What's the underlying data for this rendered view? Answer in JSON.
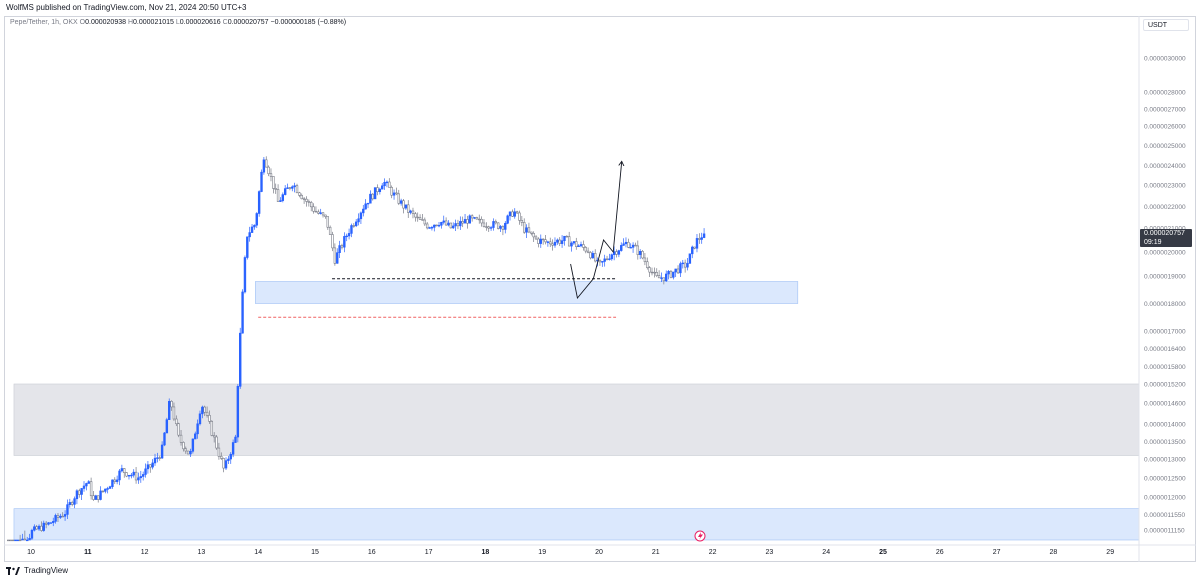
{
  "header": {
    "published_text": "WolfMS published on TradingView.com, Nov 21, 2024 20:50 UTC+3"
  },
  "legend": {
    "symbol": "Pepe/Tether, 1h, OKX",
    "o_label": "O",
    "o_value": "0.000020938",
    "h_label": "H",
    "h_value": "0.000021015",
    "l_label": "L",
    "l_value": "0.000020616",
    "c_label": "C",
    "c_value": "0.000020757",
    "change": "−0.000000185 (−0.88%)"
  },
  "currency_button": {
    "label": "USDT"
  },
  "price_tag": {
    "price": "0.000020757",
    "countdown": "09:19"
  },
  "footer": {
    "brand": "TradingView"
  },
  "icons": {
    "logo": "tradingview-logo-icon",
    "flash": "lightning-event-icon"
  },
  "colors": {
    "candle": "#2962ff",
    "candle_other": "#787b86",
    "demand_zone": "#dbe8fd",
    "gray_zone": "#e4e5ea",
    "red_dash": "#f06262"
  },
  "chart_data": {
    "type": "candlestick",
    "symbol": "Pepe/Tether, 1h, OKX",
    "x_ticks": [
      "10",
      "11",
      "12",
      "13",
      "14",
      "15",
      "16",
      "17",
      "18",
      "19",
      "20",
      "21",
      "22",
      "23",
      "24",
      "25",
      "26",
      "27",
      "28",
      "29"
    ],
    "y_ticks": [
      "0.0000030000",
      "0.0000028000",
      "0.0000027000",
      "0.0000026000",
      "0.0000025000",
      "0.0000024000",
      "0.0000023000",
      "0.0000022000",
      "0.0000021000",
      "0.0000020000",
      "0.0000019000",
      "0.0000018000",
      "0.0000017000",
      "0.0000016400",
      "0.0000015800",
      "0.0000015200",
      "0.0000014600",
      "0.0000014000",
      "0.0000013500",
      "0.0000013000",
      "0.0000012500",
      "0.0000012000",
      "0.0000011550",
      "0.0000011150"
    ],
    "last_close": 2.0757e-05,
    "price_path": [
      [
        10.0,
        1.11e-05
      ],
      [
        10.3,
        1.13e-05
      ],
      [
        10.6,
        1.16e-05
      ],
      [
        10.8,
        1.21e-05
      ],
      [
        11.0,
        1.24e-05
      ],
      [
        11.1,
        1.19e-05
      ],
      [
        11.3,
        1.22e-05
      ],
      [
        11.6,
        1.27e-05
      ],
      [
        11.9,
        1.25e-05
      ],
      [
        12.1,
        1.28e-05
      ],
      [
        12.3,
        1.32e-05
      ],
      [
        12.45,
        1.47e-05
      ],
      [
        12.6,
        1.36e-05
      ],
      [
        12.8,
        1.31e-05
      ],
      [
        13.0,
        1.46e-05
      ],
      [
        13.2,
        1.37e-05
      ],
      [
        13.4,
        1.27e-05
      ],
      [
        13.6,
        1.36e-05
      ],
      [
        13.7,
        1.75e-05
      ],
      [
        13.8,
        2.07e-05
      ],
      [
        13.95,
        2.12e-05
      ],
      [
        14.1,
        2.45e-05
      ],
      [
        14.2,
        2.36e-05
      ],
      [
        14.35,
        2.22e-05
      ],
      [
        14.6,
        2.31e-05
      ],
      [
        14.8,
        2.24e-05
      ],
      [
        15.0,
        2.18e-05
      ],
      [
        15.2,
        2.14e-05
      ],
      [
        15.35,
        1.97e-05
      ],
      [
        15.6,
        2.09e-05
      ],
      [
        15.9,
        2.22e-05
      ],
      [
        16.1,
        2.28e-05
      ],
      [
        16.2,
        2.32e-05
      ],
      [
        16.4,
        2.25e-05
      ],
      [
        16.6,
        2.19e-05
      ],
      [
        16.8,
        2.14e-05
      ],
      [
        17.0,
        2.11e-05
      ],
      [
        17.2,
        2.13e-05
      ],
      [
        17.4,
        2.1e-05
      ],
      [
        17.7,
        2.14e-05
      ],
      [
        18.0,
        2.12e-05
      ],
      [
        18.3,
        2.11e-05
      ],
      [
        18.5,
        2.18e-05
      ],
      [
        18.7,
        2.09e-05
      ],
      [
        18.9,
        2.05e-05
      ],
      [
        19.1,
        2.04e-05
      ],
      [
        19.4,
        2.05e-05
      ],
      [
        19.6,
        2.03e-05
      ],
      [
        19.8,
        2.01e-05
      ],
      [
        20.0,
        1.94e-05
      ],
      [
        20.2,
        1.99e-05
      ],
      [
        20.5,
        2.04e-05
      ],
      [
        20.7,
        2e-05
      ],
      [
        20.9,
        1.93e-05
      ],
      [
        21.0,
        1.89e-05
      ],
      [
        21.2,
        1.9e-05
      ],
      [
        21.4,
        1.93e-05
      ],
      [
        21.55,
        1.95e-05
      ],
      [
        21.7,
        2.04e-05
      ],
      [
        21.85,
        2.08e-05
      ]
    ],
    "zones": [
      {
        "name": "demand-zone-upper",
        "from_x": 13.95,
        "to_x": 23.5,
        "y_low": 1.8e-05,
        "y_high": 1.88e-05,
        "color": "#dbe8fd"
      },
      {
        "name": "gray-zone-middle",
        "from_x": 9.7,
        "to_x": 29.6,
        "y_low": 1.31e-05,
        "y_high": 1.52e-05,
        "color": "#e4e5ea"
      },
      {
        "name": "demand-zone-lower",
        "from_x": 9.7,
        "to_x": 29.6,
        "y_low": 1.1e-05,
        "y_high": 1.17e-05,
        "color": "#dbe8fd"
      }
    ],
    "lines": [
      {
        "name": "black-dashed-level",
        "from_x": 15.3,
        "to_x": 20.3,
        "y": 1.89e-05,
        "color": "#131722"
      },
      {
        "name": "red-dashed-level",
        "from_x": 14.0,
        "to_x": 20.3,
        "y": 1.75e-05,
        "color": "#f06262"
      }
    ],
    "projection_path": [
      [
        19.5,
        1.95e-05
      ],
      [
        19.62,
        1.82e-05
      ],
      [
        19.9,
        1.89e-05
      ],
      [
        20.08,
        2.05e-05
      ],
      [
        20.25,
        2e-05
      ],
      [
        20.4,
        2.42e-05
      ]
    ],
    "grid": false,
    "legend": "top-left"
  }
}
